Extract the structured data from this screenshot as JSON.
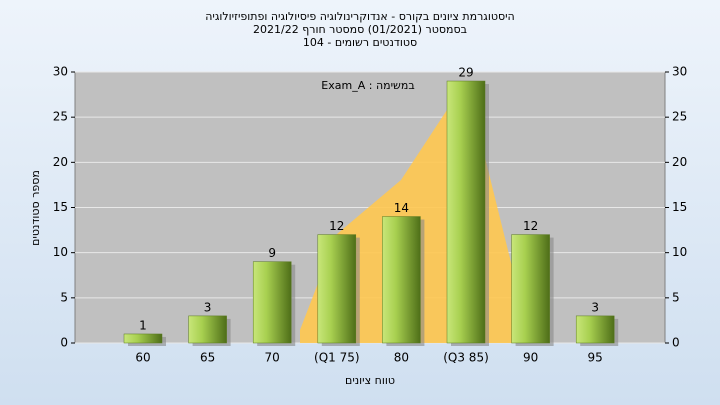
{
  "chart_data": {
    "type": "bar",
    "title": "היסטוגרמת ציונים בקורס - אנדוקרינולוגיה פיסיולוגיה ופתופיזיולוגיה",
    "subtitle": "בסמסטר  (01/2021)  סמסטר חורף 2021/22",
    "subtitle2": "סטודנטים רשומים - 104",
    "annotation": "Exam_A : במשימה",
    "x_label": "טווח ציונים",
    "y_label": "מספר סטודנטים",
    "categories": [
      "60",
      "65",
      "70",
      "(Q1 75)",
      "80",
      "(Q3 85)",
      "90",
      "95"
    ],
    "values": [
      1,
      3,
      9,
      12,
      14,
      29,
      12,
      3
    ],
    "color": "#8fbf3a",
    "ylim": [
      0,
      30
    ],
    "yticks": [
      0,
      5,
      10,
      15,
      20,
      25,
      30
    ],
    "y2lim": [
      0,
      30
    ],
    "y2ticks": [
      0,
      5,
      10,
      15,
      20,
      25,
      30
    ],
    "grid": true
  }
}
